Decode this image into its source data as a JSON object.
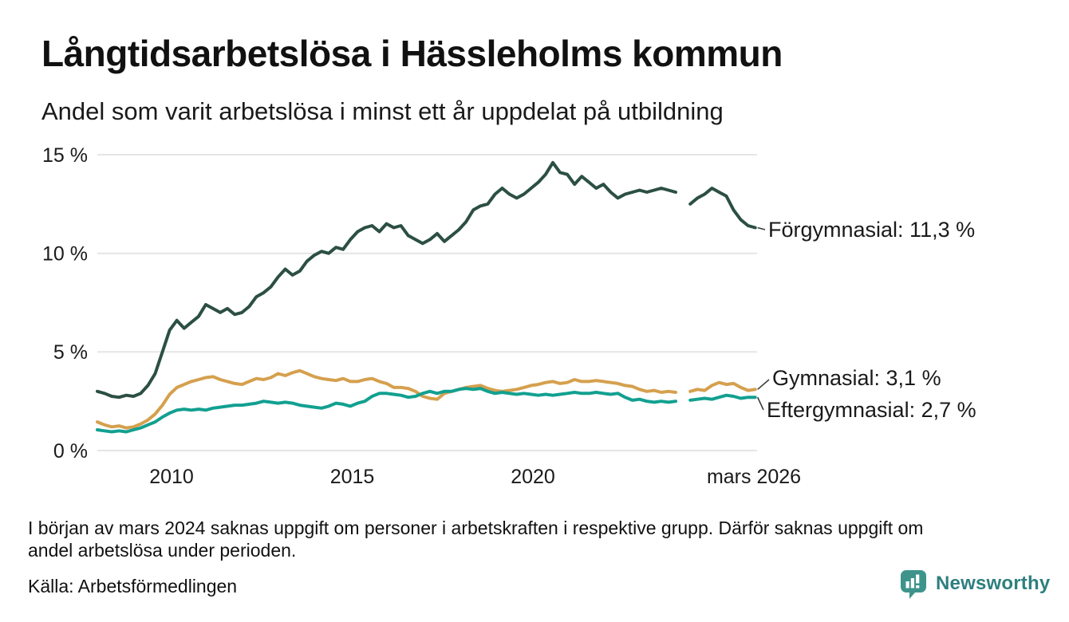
{
  "header": {
    "title": "Långtidsarbetslösa i Hässleholms kommun",
    "subtitle": "Andel som varit arbetslösa i minst ett år uppdelat på utbildning"
  },
  "chart_data": {
    "type": "line",
    "title": "Långtidsarbetslösa i Hässleholms kommun",
    "subtitle": "Andel som varit arbetslösa i minst ett år uppdelat på utbildning",
    "grid": "horizontal-only",
    "x_axis": {
      "range": [
        2008.0,
        2026.25
      ],
      "ticks": [
        {
          "value": 2010,
          "label": "2010"
        },
        {
          "value": 2015,
          "label": "2015"
        },
        {
          "value": 2020,
          "label": "2020"
        },
        {
          "value": 2026.17,
          "label": "mars 2026"
        }
      ]
    },
    "y_axis": {
      "range": [
        0,
        15
      ],
      "unit": "%",
      "ticks": [
        {
          "value": 15,
          "label": "15 %"
        },
        {
          "value": 10,
          "label": "10 %"
        },
        {
          "value": 5,
          "label": "5 %"
        },
        {
          "value": 0,
          "label": "0 %"
        }
      ]
    },
    "x_start": 2008.0,
    "x_step": 0.2,
    "missing_data_period": "mars 2024",
    "series": [
      {
        "name": "Förgymnasial",
        "color": "#2c4f44",
        "end_value": "11,3 %",
        "end_label": "Förgymnasial: 11,3 %",
        "values": [
          3.0,
          2.9,
          2.75,
          2.7,
          2.8,
          2.75,
          2.9,
          3.3,
          3.9,
          5.0,
          6.1,
          6.6,
          6.2,
          6.5,
          6.8,
          7.4,
          7.2,
          7.0,
          7.2,
          6.9,
          7.0,
          7.3,
          7.8,
          8.0,
          8.3,
          8.8,
          9.2,
          8.9,
          9.1,
          9.6,
          9.9,
          10.1,
          10.0,
          10.3,
          10.2,
          10.7,
          11.1,
          11.3,
          11.4,
          11.1,
          11.5,
          11.3,
          11.4,
          10.9,
          10.7,
          10.5,
          10.7,
          11.0,
          10.6,
          10.9,
          11.2,
          11.6,
          12.2,
          12.4,
          12.5,
          13.0,
          13.3,
          13.0,
          12.8,
          13.0,
          13.3,
          13.6,
          14.0,
          14.6,
          14.1,
          14.0,
          13.5,
          13.9,
          13.6,
          13.3,
          13.5,
          13.1,
          12.8,
          13.0,
          13.1,
          13.2,
          13.1,
          13.2,
          13.3,
          13.2,
          13.1,
          null,
          12.5,
          12.8,
          13.0,
          13.3,
          13.1,
          12.9,
          12.2,
          11.7,
          11.4,
          11.3
        ]
      },
      {
        "name": "Gymnasial",
        "color": "#d5a04e",
        "end_value": "3,1 %",
        "end_label": "Gymnasial:  3,1 %",
        "values": [
          1.45,
          1.3,
          1.2,
          1.25,
          1.15,
          1.2,
          1.35,
          1.55,
          1.85,
          2.3,
          2.85,
          3.2,
          3.35,
          3.5,
          3.6,
          3.7,
          3.75,
          3.6,
          3.5,
          3.4,
          3.35,
          3.5,
          3.65,
          3.6,
          3.7,
          3.9,
          3.8,
          3.95,
          4.05,
          3.9,
          3.75,
          3.65,
          3.6,
          3.55,
          3.65,
          3.5,
          3.5,
          3.6,
          3.65,
          3.5,
          3.4,
          3.2,
          3.2,
          3.15,
          3.0,
          2.75,
          2.65,
          2.6,
          2.9,
          3.0,
          3.1,
          3.2,
          3.25,
          3.3,
          3.15,
          3.05,
          3.0,
          3.05,
          3.1,
          3.2,
          3.3,
          3.35,
          3.45,
          3.5,
          3.4,
          3.45,
          3.6,
          3.5,
          3.5,
          3.55,
          3.5,
          3.45,
          3.4,
          3.3,
          3.25,
          3.1,
          3.0,
          3.05,
          2.95,
          3.0,
          2.95,
          null,
          3.0,
          3.1,
          3.05,
          3.3,
          3.45,
          3.35,
          3.4,
          3.2,
          3.05,
          3.1
        ]
      },
      {
        "name": "Eftergymnasial",
        "color": "#12a090",
        "end_value": "2,7 %",
        "end_label": "Eftergymnasial:  2,7 %",
        "values": [
          1.05,
          1.0,
          0.95,
          1.0,
          0.95,
          1.05,
          1.15,
          1.3,
          1.45,
          1.7,
          1.9,
          2.05,
          2.1,
          2.05,
          2.1,
          2.05,
          2.15,
          2.2,
          2.25,
          2.3,
          2.3,
          2.35,
          2.4,
          2.5,
          2.45,
          2.4,
          2.45,
          2.4,
          2.3,
          2.25,
          2.2,
          2.15,
          2.25,
          2.4,
          2.35,
          2.25,
          2.4,
          2.5,
          2.75,
          2.9,
          2.9,
          2.85,
          2.8,
          2.7,
          2.75,
          2.9,
          3.0,
          2.9,
          3.0,
          3.0,
          3.1,
          3.15,
          3.1,
          3.15,
          3.0,
          2.9,
          2.95,
          2.9,
          2.85,
          2.9,
          2.85,
          2.8,
          2.85,
          2.8,
          2.85,
          2.9,
          2.95,
          2.9,
          2.9,
          2.95,
          2.9,
          2.85,
          2.9,
          2.7,
          2.55,
          2.6,
          2.5,
          2.45,
          2.5,
          2.45,
          2.5,
          null,
          2.55,
          2.6,
          2.65,
          2.6,
          2.7,
          2.8,
          2.75,
          2.65,
          2.7,
          2.7
        ]
      }
    ]
  },
  "footnote": {
    "line1": "I början av mars 2024 saknas uppgift om personer i arbetskraften i respektive grupp. Därför saknas uppgift om",
    "line2": "andel arbetslösa under perioden."
  },
  "source": "Källa: Arbetsförmedlingen",
  "branding": {
    "name": "Newsworthy",
    "icon": "speech-bubble-bar-chart-icon",
    "icon_color": "#3e948b",
    "text_color": "#2e7f7e"
  },
  "colors": {
    "background": "#ffffff",
    "gridline": "#e5e5e5",
    "leader_line": "#3c3c3c",
    "text": "#111111"
  }
}
